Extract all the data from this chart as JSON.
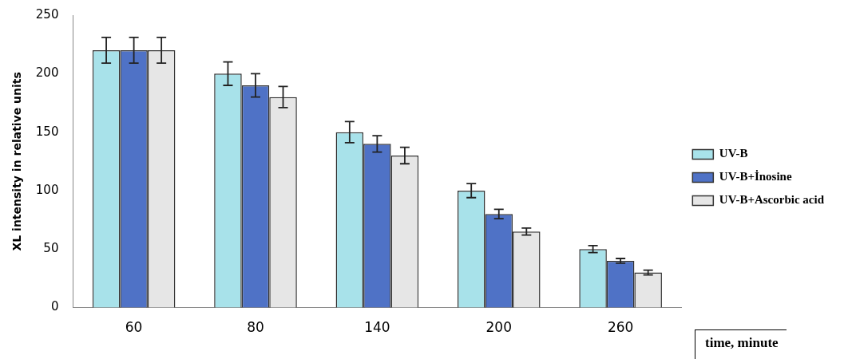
{
  "chart_data": {
    "type": "bar",
    "ylabel": "XL intensity in relative units",
    "xlabel": "time, minute",
    "categories": [
      "60",
      "80",
      "140",
      "200",
      "260"
    ],
    "series": [
      {
        "name": "UV-B",
        "color": "#a8e2ea",
        "values": [
          220,
          200,
          150,
          100,
          50
        ],
        "errors": [
          11,
          10,
          9,
          6,
          3
        ]
      },
      {
        "name": "UV-B+İnosine",
        "color": "#4f72c6",
        "values": [
          220,
          190,
          140,
          80,
          40
        ],
        "errors": [
          11,
          10,
          7,
          4,
          2
        ]
      },
      {
        "name": "UV-B+Ascorbic acid",
        "color": "#e6e6e6",
        "values": [
          220,
          180,
          130,
          65,
          30
        ],
        "errors": [
          11,
          9,
          7,
          3,
          2
        ]
      }
    ],
    "ylim": [
      0,
      250
    ],
    "yticks": [
      0,
      50,
      100,
      150,
      200,
      250
    ],
    "grid": false,
    "legend": "right"
  }
}
